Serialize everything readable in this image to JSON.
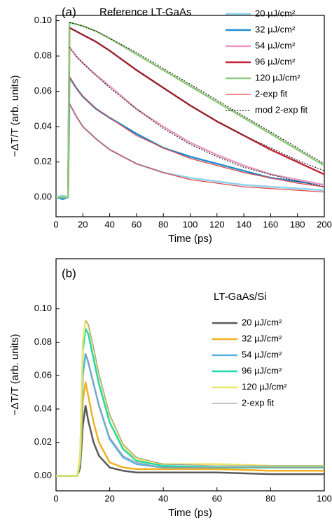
{
  "chart_data": [
    {
      "type": "line",
      "panel_label": "(a)",
      "annotation": "Reference LT-GaAs",
      "xlabel": "Time (ps)",
      "ylabel": "−ΔT/T (arb. units)",
      "xlim": [
        0,
        200
      ],
      "ylim": [
        -0.011,
        0.103
      ],
      "xticks": [
        0,
        20,
        40,
        60,
        80,
        100,
        120,
        140,
        160,
        180,
        200
      ],
      "yticks": [
        {
          "value": 0,
          "label": "0.00"
        },
        {
          "value": 0.02,
          "label": "0.02"
        },
        {
          "value": 0.04,
          "label": "0.04"
        },
        {
          "value": 0.06,
          "label": "0.06"
        },
        {
          "value": 0.08,
          "label": "0.08"
        },
        {
          "value": 0.1,
          "label": "0.10"
        }
      ],
      "legend": "upper right",
      "x": [
        0,
        5,
        9,
        10,
        15,
        20,
        30,
        40,
        60,
        80,
        100,
        120,
        140,
        160,
        180,
        200
      ],
      "series": [
        {
          "name": "20 µJ/cm²",
          "color": "#8ed2ef",
          "width": 2.5,
          "values": [
            0,
            0.001,
            0,
            0.053,
            0.046,
            0.04,
            0.033,
            0.027,
            0.019,
            0.014,
            0.011,
            0.009,
            0.007,
            0.006,
            0.005,
            0.004
          ]
        },
        {
          "name": "32 µJ/cm²",
          "color": "#1c8ccc",
          "width": 2.5,
          "values": [
            0,
            -0.001,
            0,
            0.068,
            0.062,
            0.057,
            0.05,
            0.045,
            0.036,
            0.028,
            0.023,
            0.019,
            0.015,
            0.011,
            0.009,
            0.007
          ]
        },
        {
          "name": "54 µJ/cm²",
          "color": "#e99bc2",
          "width": 2.5,
          "values": [
            0,
            0,
            0,
            0.085,
            0.08,
            0.076,
            0.069,
            0.063,
            0.05,
            0.04,
            0.031,
            0.024,
            0.018,
            0.013,
            0.01,
            0.007
          ]
        },
        {
          "name": "96 µJ/cm²",
          "color": "#c2283a",
          "width": 2.5,
          "values": [
            0,
            0,
            0,
            0.096,
            0.094,
            0.092,
            0.088,
            0.083,
            0.072,
            0.062,
            0.052,
            0.043,
            0.035,
            0.027,
            0.02,
            0.013
          ]
        },
        {
          "name": "120 µJ/cm²",
          "color": "#8ec97a",
          "width": 2.5,
          "values": [
            0,
            0,
            0,
            0.099,
            0.098,
            0.097,
            0.094,
            0.09,
            0.081,
            0.072,
            0.063,
            0.054,
            0.045,
            0.036,
            0.027,
            0.018
          ]
        },
        {
          "name": "2-exp fit",
          "color": "#e04848",
          "width": 1.3,
          "dash": false,
          "curves": [
            [
              null,
              null,
              null,
              0.053,
              0.046,
              0.04,
              0.033,
              0.027,
              0.019,
              0.014,
              0.01,
              0.008,
              0.006,
              0.005,
              0.004,
              0.003
            ],
            [
              null,
              null,
              null,
              0.068,
              0.062,
              0.057,
              0.05,
              0.045,
              0.035,
              0.028,
              0.022,
              0.018,
              0.014,
              0.011,
              0.008,
              0.006
            ]
          ]
        },
        {
          "name": "mod 2-exp fit",
          "color": "#222222",
          "width": 1.2,
          "dash": true,
          "curves": [
            [
              null,
              null,
              null,
              0.085,
              0.08,
              0.076,
              0.069,
              0.062,
              0.05,
              0.039,
              0.03,
              0.023,
              0.017,
              0.013,
              0.009,
              0.006
            ],
            [
              null,
              null,
              null,
              0.096,
              0.094,
              0.092,
              0.088,
              0.083,
              0.072,
              0.062,
              0.052,
              0.043,
              0.035,
              0.028,
              0.021,
              0.015
            ],
            [
              null,
              null,
              null,
              0.099,
              0.098,
              0.097,
              0.094,
              0.09,
              0.082,
              0.073,
              0.064,
              0.055,
              0.046,
              0.037,
              0.028,
              0.019
            ]
          ]
        }
      ]
    },
    {
      "type": "line",
      "panel_label": "(b)",
      "legend_title": "LT-GaAs/Si",
      "xlabel": "Time (ps)",
      "ylabel": "−ΔT/T (arb. units)",
      "xlim": [
        0,
        100
      ],
      "ylim": [
        -0.009,
        0.13
      ],
      "xticks": [
        0,
        20,
        40,
        60,
        80,
        100
      ],
      "yticks": [
        {
          "value": 0,
          "label": "0.00"
        },
        {
          "value": 0.02,
          "label": "0.02"
        },
        {
          "value": 0.04,
          "label": "0.04"
        },
        {
          "value": 0.06,
          "label": "0.06"
        },
        {
          "value": 0.08,
          "label": "0.08"
        },
        {
          "value": 0.1,
          "label": "0.10"
        }
      ],
      "legend": "upper right",
      "x": [
        0,
        5,
        8,
        9,
        10,
        11,
        12,
        14,
        16,
        20,
        25,
        30,
        40,
        60,
        80,
        100
      ],
      "series": [
        {
          "name": "20 µJ/cm²",
          "color": "#595959",
          "width": 2.5,
          "values": [
            0,
            0,
            0,
            0.005,
            0.03,
            0.042,
            0.033,
            0.02,
            0.012,
            0.005,
            0.003,
            0.002,
            0.002,
            0.002,
            0.001,
            0.001
          ]
        },
        {
          "name": "32 µJ/cm²",
          "color": "#f2b022",
          "width": 2.5,
          "values": [
            0,
            0,
            0,
            0.008,
            0.045,
            0.056,
            0.048,
            0.032,
            0.02,
            0.008,
            0.005,
            0.004,
            0.004,
            0.004,
            0.003,
            0.003
          ]
        },
        {
          "name": "54 µJ/cm²",
          "color": "#5ab2e2",
          "width": 2.5,
          "values": [
            0,
            0,
            0,
            0.01,
            0.06,
            0.073,
            0.068,
            0.055,
            0.042,
            0.022,
            0.011,
            0.007,
            0.005,
            0.005,
            0.005,
            0.005
          ]
        },
        {
          "name": "96 µJ/cm²",
          "color": "#22d8a8",
          "width": 2.5,
          "values": [
            0,
            0,
            0,
            0.012,
            0.075,
            0.088,
            0.085,
            0.07,
            0.055,
            0.032,
            0.016,
            0.009,
            0.006,
            0.005,
            0.005,
            0.005
          ]
        },
        {
          "name": "120 µJ/cm²",
          "color": "#ebe56a",
          "width": 2.5,
          "values": [
            0,
            0,
            0,
            0.013,
            0.08,
            0.093,
            0.09,
            0.076,
            0.06,
            0.036,
            0.018,
            0.01,
            0.007,
            0.007,
            0.006,
            0.006
          ]
        },
        {
          "name": "2-exp fit",
          "color": "#9a9a9a",
          "width": 1.1,
          "dash": false,
          "curves": [
            [
              null,
              null,
              null,
              null,
              null,
              0.073,
              0.069,
              0.056,
              0.043,
              0.023,
              0.012,
              0.008,
              0.005,
              0.005,
              0.005,
              0.005
            ],
            [
              null,
              null,
              null,
              null,
              null,
              0.093,
              0.091,
              0.077,
              0.061,
              0.037,
              0.019,
              0.011,
              0.007,
              0.006,
              0.006,
              0.006
            ]
          ]
        }
      ]
    }
  ]
}
